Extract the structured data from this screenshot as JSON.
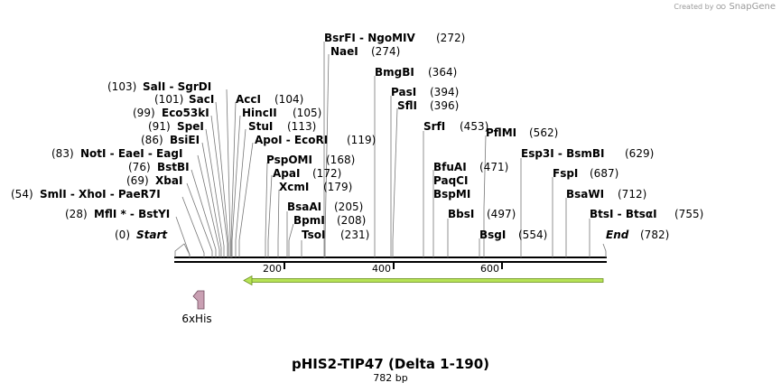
{
  "credit": {
    "prefix": "Created by",
    "brand": "SnapGene"
  },
  "map": {
    "title": "pHIS2-TIP47 (Delta 1-190)",
    "length_label": "782 bp",
    "length_bp": 782,
    "ticks": [
      "200",
      "400",
      "600"
    ],
    "colors": {
      "backbone": "#000000",
      "feature_arrow": "#b7e356",
      "his_tag": "#c9a0b3"
    }
  },
  "features": [
    {
      "label": "6xHis",
      "color": "#c9a0b3"
    },
    {
      "label": "",
      "color": "#b7e356"
    }
  ],
  "sites": [
    {
      "name": "Start",
      "pos": "(0)"
    },
    {
      "name": "MflI * - BstYI",
      "pos": "(28)"
    },
    {
      "name": "SmlI - XhoI - PaeR7I",
      "pos": "(54)"
    },
    {
      "name": "XbaI",
      "pos": "(69)"
    },
    {
      "name": "BstBI",
      "pos": "(76)"
    },
    {
      "name": "NotI - EaeI - EagI",
      "pos": "(83)"
    },
    {
      "name": "BsiEI",
      "pos": "(86)"
    },
    {
      "name": "SpeI",
      "pos": "(91)"
    },
    {
      "name": "Eco53kI",
      "pos": "(99)"
    },
    {
      "name": "SacI",
      "pos": "(101)"
    },
    {
      "name": "SalI - SgrDI",
      "pos": "(103)"
    },
    {
      "name": "AccI",
      "pos": "(104)"
    },
    {
      "name": "HincII",
      "pos": "(105)"
    },
    {
      "name": "StuI",
      "pos": "(113)"
    },
    {
      "name": "ApoI - EcoRI",
      "pos": "(119)"
    },
    {
      "name": "PspOMI",
      "pos": "(168)"
    },
    {
      "name": "ApaI",
      "pos": "(172)"
    },
    {
      "name": "XcmI",
      "pos": "(179)"
    },
    {
      "name": "BsaAI",
      "pos": "(205)"
    },
    {
      "name": "BpmI",
      "pos": "(208)"
    },
    {
      "name": "TsoI",
      "pos": "(231)"
    },
    {
      "name": "BsrFI - NgoMIV",
      "pos": "(272)"
    },
    {
      "name": "NaeI",
      "pos": "(274)"
    },
    {
      "name": "BmgBI",
      "pos": "(364)"
    },
    {
      "name": "PasI",
      "pos": "(394)"
    },
    {
      "name": "SflI",
      "pos": "(396)"
    },
    {
      "name": "SrfI",
      "pos": "(453)"
    },
    {
      "name": "BfuAI",
      "pos": "(471)"
    },
    {
      "name": "PaqCI",
      "pos": ""
    },
    {
      "name": "BspMI",
      "pos": ""
    },
    {
      "name": "BbsI",
      "pos": "(497)"
    },
    {
      "name": "BsgI",
      "pos": "(554)"
    },
    {
      "name": "PflMI",
      "pos": "(562)"
    },
    {
      "name": "Esp3I - BsmBI",
      "pos": "(629)"
    },
    {
      "name": "FspI",
      "pos": "(687)"
    },
    {
      "name": "BsaWI",
      "pos": "(712)"
    },
    {
      "name": "BtsI - BtsαI",
      "pos": "(755)"
    },
    {
      "name": "End",
      "pos": "(782)"
    }
  ]
}
